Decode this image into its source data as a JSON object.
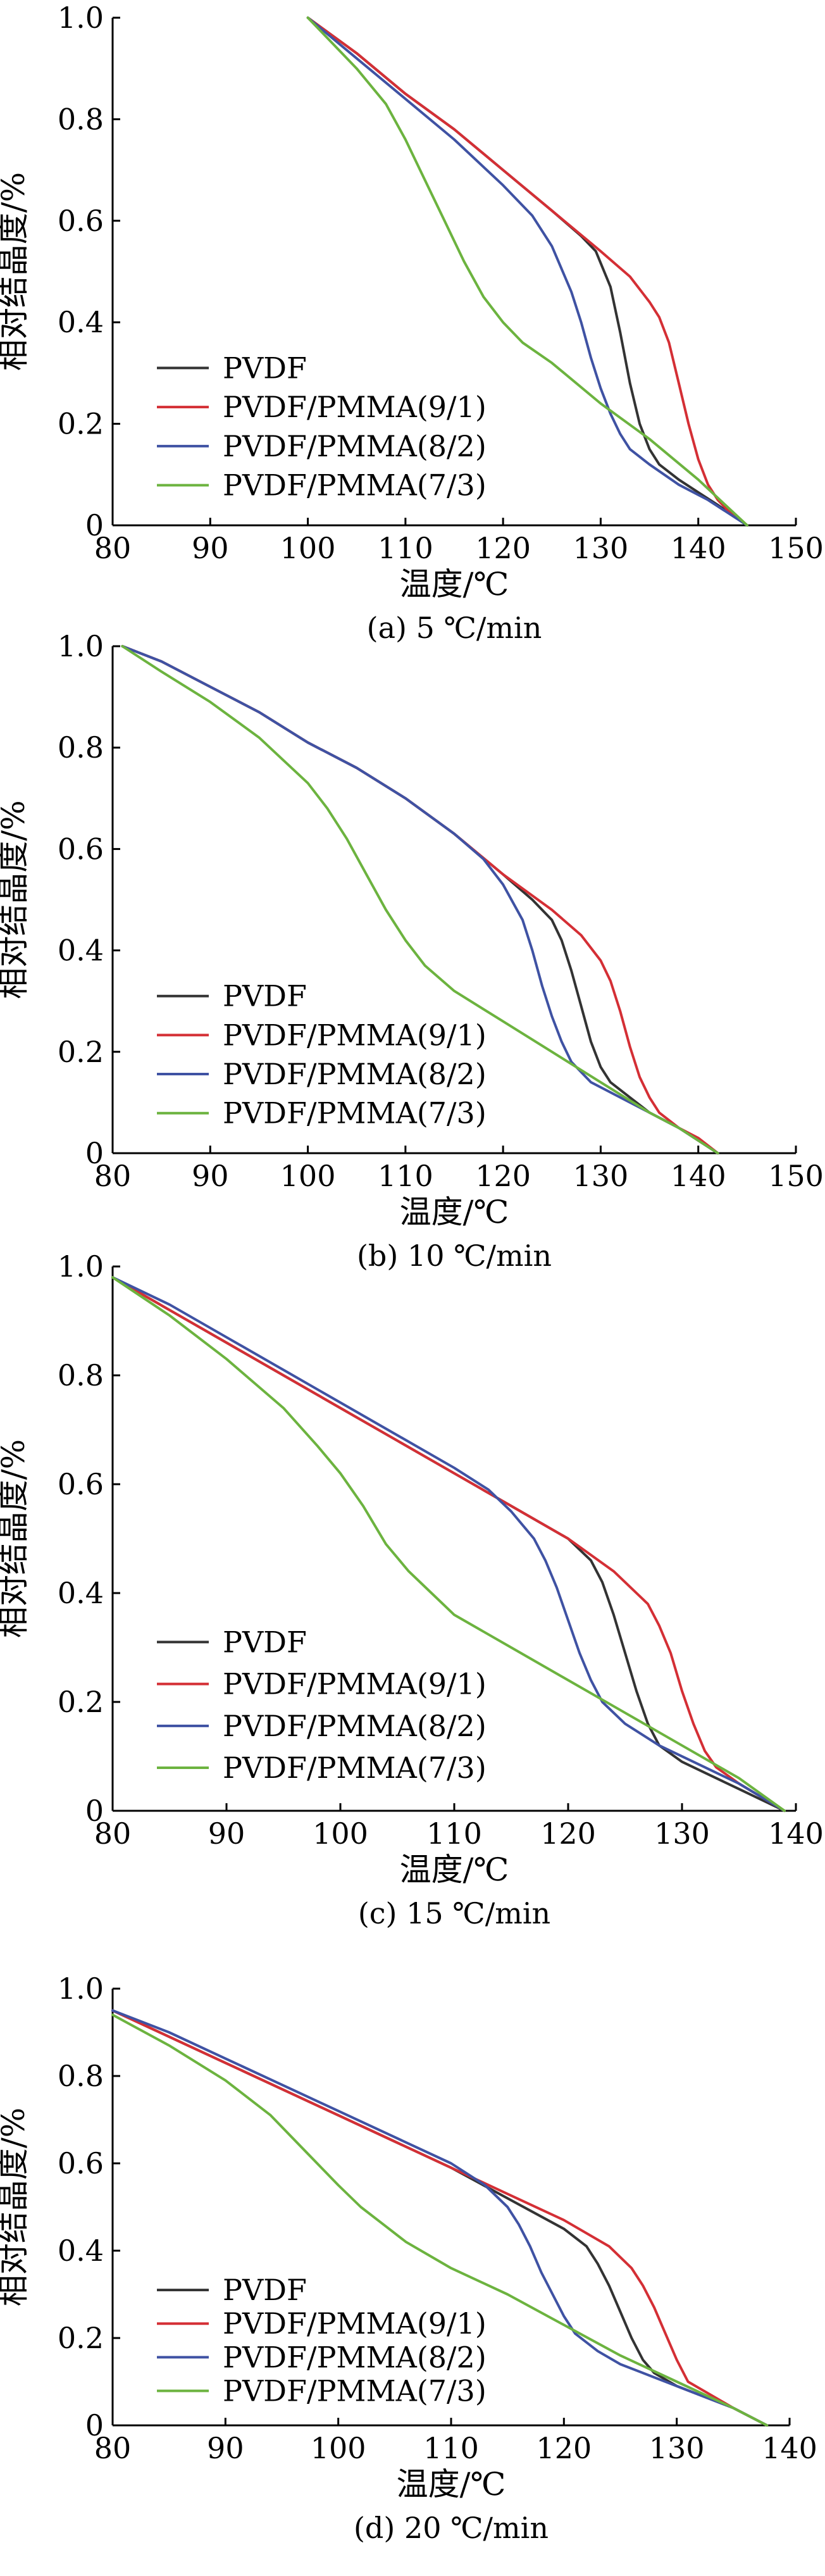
{
  "colors": {
    "PVDF": "#333333",
    "PVDF/PMMA(9/1)": "#d42f35",
    "PVDF/PMMA(8/2)": "#3f52a3",
    "PVDF/PMMA(7/3)": "#6cb33f"
  },
  "chart_data": [
    {
      "type": "line",
      "caption": "(a) 5 ℃/min",
      "xlabel": "温度/℃",
      "ylabel": "相对结晶度/%",
      "xlim": [
        80,
        150
      ],
      "ylim": [
        0,
        1.0
      ],
      "xticks": [
        "80",
        "90",
        "100",
        "110",
        "120",
        "130",
        "140",
        "150"
      ],
      "yticks": [
        "0",
        "0.2",
        "0.4",
        "0.6",
        "0.8",
        "1.0"
      ],
      "grid": false,
      "legend": "lower-left",
      "series": [
        {
          "name": "PVDF",
          "color": "#333333",
          "x": [
            100,
            105,
            110,
            115,
            120,
            125,
            128,
            129.5,
            131,
            132,
            133,
            134,
            135,
            136,
            138,
            140,
            142,
            145
          ],
          "y": [
            1.0,
            0.93,
            0.85,
            0.78,
            0.7,
            0.62,
            0.57,
            0.54,
            0.47,
            0.38,
            0.28,
            0.2,
            0.15,
            0.12,
            0.09,
            0.065,
            0.04,
            0.0
          ]
        },
        {
          "name": "PVDF/PMMA(9/1)",
          "color": "#d42f35",
          "x": [
            100,
            105,
            110,
            115,
            120,
            125,
            130,
            133,
            135,
            136,
            137,
            138,
            139,
            140,
            141,
            142,
            143,
            145
          ],
          "y": [
            1.0,
            0.93,
            0.85,
            0.78,
            0.7,
            0.62,
            0.54,
            0.49,
            0.44,
            0.41,
            0.36,
            0.28,
            0.2,
            0.13,
            0.08,
            0.05,
            0.03,
            0.0
          ]
        },
        {
          "name": "PVDF/PMMA(8/2)",
          "color": "#3f52a3",
          "x": [
            100,
            105,
            110,
            115,
            120,
            123,
            125,
            127,
            128,
            129,
            130,
            131,
            132,
            133,
            135,
            138,
            141,
            145
          ],
          "y": [
            1.0,
            0.92,
            0.84,
            0.76,
            0.67,
            0.61,
            0.55,
            0.46,
            0.4,
            0.33,
            0.27,
            0.22,
            0.18,
            0.15,
            0.12,
            0.08,
            0.05,
            0.0
          ]
        },
        {
          "name": "PVDF/PMMA(7/3)",
          "color": "#6cb33f",
          "x": [
            100,
            105,
            108,
            110,
            112,
            114,
            116,
            118,
            120,
            122,
            125,
            130,
            135,
            140,
            145
          ],
          "y": [
            1.0,
            0.9,
            0.83,
            0.76,
            0.68,
            0.6,
            0.52,
            0.45,
            0.4,
            0.36,
            0.32,
            0.24,
            0.17,
            0.09,
            0.0
          ]
        }
      ]
    },
    {
      "type": "line",
      "caption": "(b) 10 ℃/min",
      "xlabel": "温度/℃",
      "ylabel": "相对结晶度/%",
      "xlim": [
        80,
        150
      ],
      "ylim": [
        0,
        1.0
      ],
      "xticks": [
        "80",
        "90",
        "100",
        "110",
        "120",
        "130",
        "140",
        "150"
      ],
      "yticks": [
        "0",
        "0.2",
        "0.4",
        "0.6",
        "0.8",
        "1.0"
      ],
      "grid": false,
      "legend": "lower-left",
      "series": [
        {
          "name": "PVDF",
          "color": "#333333",
          "x": [
            81,
            85,
            90,
            95,
            100,
            105,
            110,
            115,
            120,
            123,
            125,
            126,
            127,
            128,
            129,
            130,
            131,
            133,
            135,
            138,
            142
          ],
          "y": [
            1.0,
            0.97,
            0.92,
            0.87,
            0.81,
            0.76,
            0.7,
            0.63,
            0.55,
            0.5,
            0.46,
            0.42,
            0.36,
            0.29,
            0.22,
            0.17,
            0.14,
            0.11,
            0.08,
            0.05,
            0.0
          ]
        },
        {
          "name": "PVDF/PMMA(9/1)",
          "color": "#d42f35",
          "x": [
            81,
            85,
            90,
            95,
            100,
            105,
            110,
            115,
            120,
            125,
            128,
            130,
            131,
            132,
            133,
            134,
            135,
            136,
            138,
            140,
            142
          ],
          "y": [
            1.0,
            0.97,
            0.92,
            0.87,
            0.81,
            0.76,
            0.7,
            0.63,
            0.55,
            0.48,
            0.43,
            0.38,
            0.34,
            0.28,
            0.21,
            0.15,
            0.11,
            0.08,
            0.05,
            0.03,
            0.0
          ]
        },
        {
          "name": "PVDF/PMMA(8/2)",
          "color": "#3f52a3",
          "x": [
            81,
            85,
            90,
            95,
            100,
            105,
            110,
            115,
            118,
            120,
            122,
            123,
            124,
            125,
            126,
            127,
            129,
            132,
            135,
            138,
            142
          ],
          "y": [
            1.0,
            0.97,
            0.92,
            0.87,
            0.81,
            0.76,
            0.7,
            0.63,
            0.58,
            0.53,
            0.46,
            0.4,
            0.33,
            0.27,
            0.22,
            0.18,
            0.14,
            0.11,
            0.08,
            0.05,
            0.0
          ]
        },
        {
          "name": "PVDF/PMMA(7/3)",
          "color": "#6cb33f",
          "x": [
            81,
            85,
            90,
            95,
            100,
            102,
            104,
            106,
            108,
            110,
            112,
            115,
            120,
            125,
            130,
            135,
            138,
            142
          ],
          "y": [
            1.0,
            0.95,
            0.89,
            0.82,
            0.73,
            0.68,
            0.62,
            0.55,
            0.48,
            0.42,
            0.37,
            0.32,
            0.26,
            0.2,
            0.14,
            0.08,
            0.05,
            0.0
          ]
        }
      ]
    },
    {
      "type": "line",
      "caption": "(c) 15 ℃/min",
      "xlabel": "温度/℃",
      "ylabel": "相对结晶度/%",
      "xlim": [
        80,
        140
      ],
      "ylim": [
        0,
        1.0
      ],
      "xticks": [
        "80",
        "90",
        "100",
        "110",
        "120",
        "130",
        "140"
      ],
      "yticks": [
        "0",
        "0.2",
        "0.4",
        "0.6",
        "0.8",
        "1.0"
      ],
      "grid": false,
      "legend": "lower-left",
      "series": [
        {
          "name": "PVDF",
          "color": "#333333",
          "x": [
            80,
            85,
            90,
            95,
            100,
            105,
            110,
            115,
            120,
            122,
            123,
            124,
            125,
            126,
            127,
            128,
            130,
            132,
            135,
            139
          ],
          "y": [
            0.98,
            0.92,
            0.86,
            0.8,
            0.74,
            0.68,
            0.62,
            0.56,
            0.5,
            0.46,
            0.42,
            0.36,
            0.29,
            0.22,
            0.16,
            0.12,
            0.09,
            0.07,
            0.04,
            0.0
          ]
        },
        {
          "name": "PVDF/PMMA(9/1)",
          "color": "#d42f35",
          "x": [
            80,
            85,
            90,
            95,
            100,
            105,
            110,
            115,
            120,
            124,
            127,
            128,
            129,
            130,
            131,
            132,
            133,
            135,
            139
          ],
          "y": [
            0.98,
            0.92,
            0.86,
            0.8,
            0.74,
            0.68,
            0.62,
            0.56,
            0.5,
            0.44,
            0.38,
            0.34,
            0.29,
            0.22,
            0.16,
            0.11,
            0.08,
            0.05,
            0.0
          ]
        },
        {
          "name": "PVDF/PMMA(8/2)",
          "color": "#3f52a3",
          "x": [
            80,
            85,
            90,
            95,
            100,
            105,
            110,
            113,
            115,
            117,
            118,
            119,
            120,
            121,
            122,
            123,
            125,
            128,
            132,
            135,
            139
          ],
          "y": [
            0.98,
            0.93,
            0.87,
            0.81,
            0.75,
            0.69,
            0.63,
            0.59,
            0.55,
            0.5,
            0.46,
            0.41,
            0.35,
            0.29,
            0.24,
            0.2,
            0.16,
            0.12,
            0.08,
            0.05,
            0.0
          ]
        },
        {
          "name": "PVDF/PMMA(7/3)",
          "color": "#6cb33f",
          "x": [
            80,
            85,
            90,
            95,
            98,
            100,
            102,
            104,
            106,
            108,
            110,
            115,
            120,
            125,
            130,
            135,
            139
          ],
          "y": [
            0.98,
            0.91,
            0.83,
            0.74,
            0.67,
            0.62,
            0.56,
            0.49,
            0.44,
            0.4,
            0.36,
            0.3,
            0.24,
            0.18,
            0.12,
            0.06,
            0.0
          ]
        }
      ]
    },
    {
      "type": "line",
      "caption": "(d) 20 ℃/min",
      "xlabel": "温度/℃",
      "ylabel": "相对结晶度/%",
      "xlim": [
        80,
        140
      ],
      "ylim": [
        0,
        1.0
      ],
      "xticks": [
        "80",
        "90",
        "100",
        "110",
        "120",
        "130",
        "140"
      ],
      "yticks": [
        "0",
        "0.2",
        "0.4",
        "0.6",
        "0.8",
        "1.0"
      ],
      "grid": false,
      "legend": "lower-left",
      "series": [
        {
          "name": "PVDF",
          "color": "#333333",
          "x": [
            80,
            85,
            90,
            95,
            100,
            105,
            110,
            115,
            120,
            122,
            123,
            124,
            125,
            126,
            127,
            128,
            130,
            133,
            135,
            138
          ],
          "y": [
            0.95,
            0.89,
            0.83,
            0.77,
            0.71,
            0.65,
            0.59,
            0.52,
            0.45,
            0.41,
            0.37,
            0.32,
            0.26,
            0.2,
            0.15,
            0.12,
            0.09,
            0.06,
            0.04,
            0.0
          ]
        },
        {
          "name": "PVDF/PMMA(9/1)",
          "color": "#d42f35",
          "x": [
            80,
            85,
            90,
            95,
            100,
            105,
            110,
            115,
            120,
            124,
            126,
            127,
            128,
            129,
            130,
            131,
            133,
            135,
            138
          ],
          "y": [
            0.95,
            0.89,
            0.83,
            0.77,
            0.71,
            0.65,
            0.59,
            0.53,
            0.47,
            0.41,
            0.36,
            0.32,
            0.27,
            0.21,
            0.15,
            0.1,
            0.07,
            0.04,
            0.0
          ]
        },
        {
          "name": "PVDF/PMMA(8/2)",
          "color": "#3f52a3",
          "x": [
            80,
            85,
            90,
            95,
            100,
            105,
            110,
            113,
            115,
            116,
            117,
            118,
            119,
            120,
            121,
            123,
            125,
            128,
            132,
            135,
            138
          ],
          "y": [
            0.95,
            0.9,
            0.84,
            0.78,
            0.72,
            0.66,
            0.6,
            0.55,
            0.5,
            0.46,
            0.41,
            0.35,
            0.3,
            0.25,
            0.21,
            0.17,
            0.14,
            0.11,
            0.07,
            0.04,
            0.0
          ]
        },
        {
          "name": "PVDF/PMMA(7/3)",
          "color": "#6cb33f",
          "x": [
            80,
            85,
            90,
            94,
            97,
            100,
            102,
            104,
            106,
            108,
            110,
            115,
            120,
            125,
            130,
            135,
            138
          ],
          "y": [
            0.94,
            0.87,
            0.79,
            0.71,
            0.63,
            0.55,
            0.5,
            0.46,
            0.42,
            0.39,
            0.36,
            0.3,
            0.23,
            0.16,
            0.1,
            0.04,
            0.0
          ]
        }
      ]
    }
  ]
}
